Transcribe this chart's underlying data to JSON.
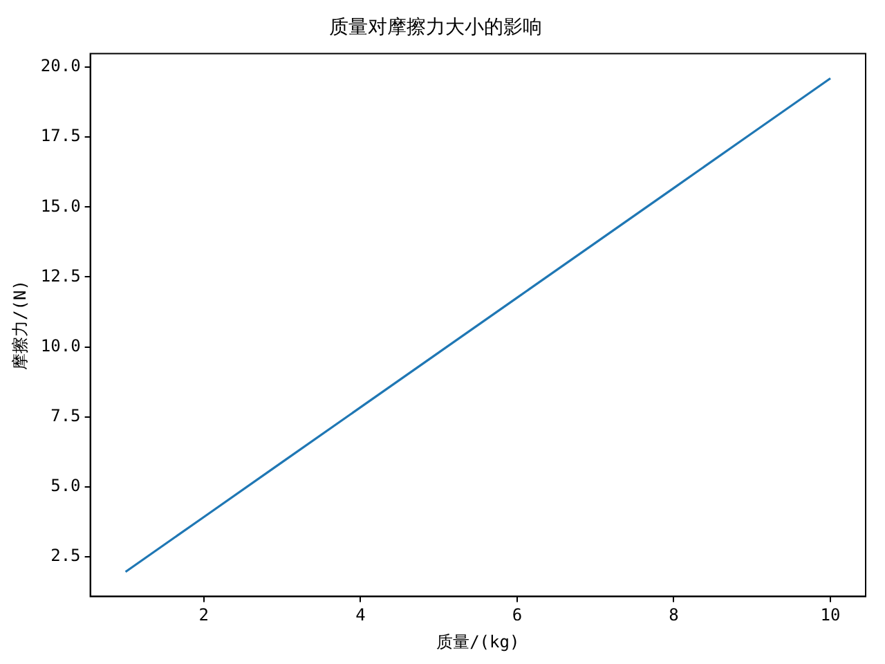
{
  "chart_data": {
    "type": "line",
    "title": "质量对摩擦力大小的影响",
    "xlabel": "质量/(kg)",
    "ylabel": "摩擦力/(N)",
    "x": [
      1,
      2,
      3,
      4,
      5,
      6,
      7,
      8,
      9,
      10
    ],
    "series": [
      {
        "color": "#1f77b4",
        "values": [
          1.96,
          3.92,
          5.88,
          7.84,
          9.8,
          11.76,
          13.72,
          15.68,
          17.64,
          19.6
        ]
      }
    ],
    "xlim": [
      0.55,
      10.45
    ],
    "ylim": [
      1.078,
      20.482
    ],
    "xticks": [
      2,
      4,
      6,
      8,
      10
    ],
    "yticks": [
      {
        "value": 2.5,
        "label": "2.5"
      },
      {
        "value": 5,
        "label": "5.0"
      },
      {
        "value": 7.5,
        "label": "7.5"
      },
      {
        "value": 10,
        "label": "10.0"
      },
      {
        "value": 12.5,
        "label": "12.5"
      },
      {
        "value": 15,
        "label": "15.0"
      },
      {
        "value": 17.5,
        "label": "17.5"
      },
      {
        "value": 20,
        "label": "20.0"
      }
    ],
    "grid": false,
    "legend": false,
    "marker": "none",
    "line_style": "solid"
  }
}
